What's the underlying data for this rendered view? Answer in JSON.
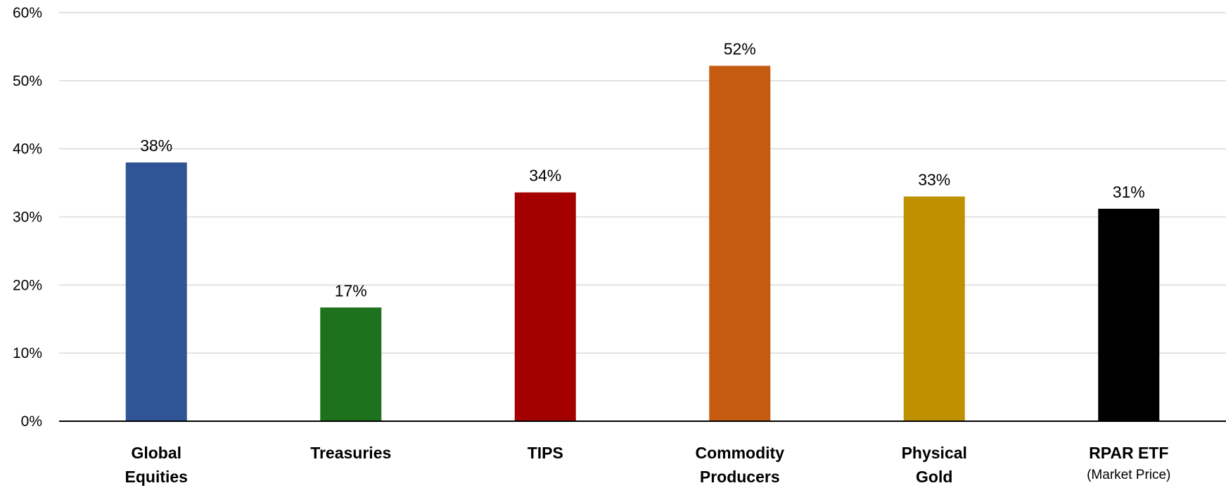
{
  "chart_data": {
    "type": "bar",
    "categories": [
      {
        "lines": [
          "Global",
          "Equities"
        ],
        "note": ""
      },
      {
        "lines": [
          "Treasuries"
        ],
        "note": ""
      },
      {
        "lines": [
          "TIPS"
        ],
        "note": ""
      },
      {
        "lines": [
          "Commodity",
          "Producers"
        ],
        "note": ""
      },
      {
        "lines": [
          "Physical",
          "Gold"
        ],
        "note": ""
      },
      {
        "lines": [
          "RPAR ETF"
        ],
        "note": "(Market Price)"
      }
    ],
    "values": [
      38,
      16.7,
      33.6,
      52.2,
      33,
      31.2
    ],
    "data_labels": [
      "38%",
      "17%",
      "34%",
      "52%",
      "33%",
      "31%"
    ],
    "colors": [
      "#2F5597",
      "#1E721E",
      "#A50000",
      "#C55A11",
      "#BF9000",
      "#000000"
    ],
    "ylim": [
      0,
      60
    ],
    "yticks": [
      0,
      10,
      20,
      30,
      40,
      50,
      60
    ],
    "ytick_labels": [
      "0%",
      "10%",
      "20%",
      "30%",
      "40%",
      "50%",
      "60%"
    ],
    "grid": true,
    "legend": "none"
  }
}
